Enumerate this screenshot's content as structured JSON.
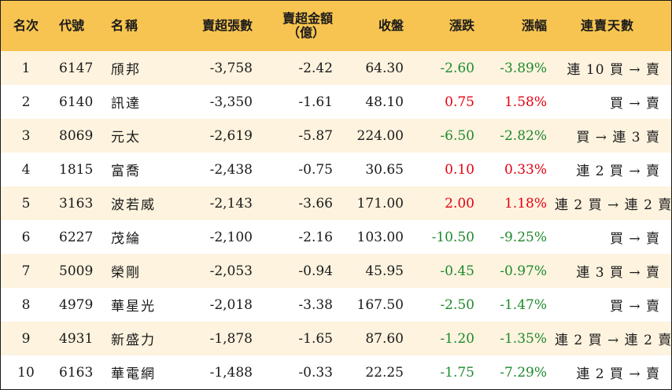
{
  "headers": {
    "rank": "名次",
    "code": "代號",
    "name": "名稱",
    "net_sell_lots": "賣超張數",
    "net_sell_amount_line1": "賣超金額",
    "net_sell_amount_line2": "（億）",
    "close": "收盤",
    "change": "漲跌",
    "change_pct": "漲幅",
    "streak": "連賣天數"
  },
  "rows": [
    {
      "rank": "1",
      "code": "6147",
      "name": "頎邦",
      "lots": "-3,758",
      "amount": "-2.42",
      "close": "64.30",
      "change": "-2.60",
      "pct": "-3.89%",
      "dir": "down",
      "streak": "連 10 買 → 賣"
    },
    {
      "rank": "2",
      "code": "6140",
      "name": "訊達",
      "lots": "-3,350",
      "amount": "-1.61",
      "close": "48.10",
      "change": "0.75",
      "pct": "1.58%",
      "dir": "up",
      "streak": "買 → 賣"
    },
    {
      "rank": "3",
      "code": "8069",
      "name": "元太",
      "lots": "-2,619",
      "amount": "-5.87",
      "close": "224.00",
      "change": "-6.50",
      "pct": "-2.82%",
      "dir": "down",
      "streak": "買 → 連 3 賣"
    },
    {
      "rank": "4",
      "code": "1815",
      "name": "富喬",
      "lots": "-2,438",
      "amount": "-0.75",
      "close": "30.65",
      "change": "0.10",
      "pct": "0.33%",
      "dir": "up",
      "streak": "連 2 買 → 賣"
    },
    {
      "rank": "5",
      "code": "3163",
      "name": "波若威",
      "lots": "-2,143",
      "amount": "-3.66",
      "close": "171.00",
      "change": "2.00",
      "pct": "1.18%",
      "dir": "up",
      "streak": "連 2 買 → 連 2 賣"
    },
    {
      "rank": "6",
      "code": "6227",
      "name": "茂綸",
      "lots": "-2,100",
      "amount": "-2.16",
      "close": "103.00",
      "change": "-10.50",
      "pct": "-9.25%",
      "dir": "down",
      "streak": "買 → 賣"
    },
    {
      "rank": "7",
      "code": "5009",
      "name": "榮剛",
      "lots": "-2,053",
      "amount": "-0.94",
      "close": "45.95",
      "change": "-0.45",
      "pct": "-0.97%",
      "dir": "down",
      "streak": "連 3 買 → 賣"
    },
    {
      "rank": "8",
      "code": "4979",
      "name": "華星光",
      "lots": "-2,018",
      "amount": "-3.38",
      "close": "167.50",
      "change": "-2.50",
      "pct": "-1.47%",
      "dir": "down",
      "streak": "買 → 賣"
    },
    {
      "rank": "9",
      "code": "4931",
      "name": "新盛力",
      "lots": "-1,878",
      "amount": "-1.65",
      "close": "87.60",
      "change": "-1.20",
      "pct": "-1.35%",
      "dir": "down",
      "streak": "連 2 買 → 連 2 賣"
    },
    {
      "rank": "10",
      "code": "6163",
      "name": "華電網",
      "lots": "-1,488",
      "amount": "-0.33",
      "close": "22.25",
      "change": "-1.75",
      "pct": "-7.29%",
      "dir": "down",
      "streak": "連 2 買 → 賣"
    }
  ],
  "colors": {
    "header_bg": "#f7c451",
    "stripe_bg": "#fdf3df",
    "up": "#e5000f",
    "down": "#1f8a2e"
  }
}
